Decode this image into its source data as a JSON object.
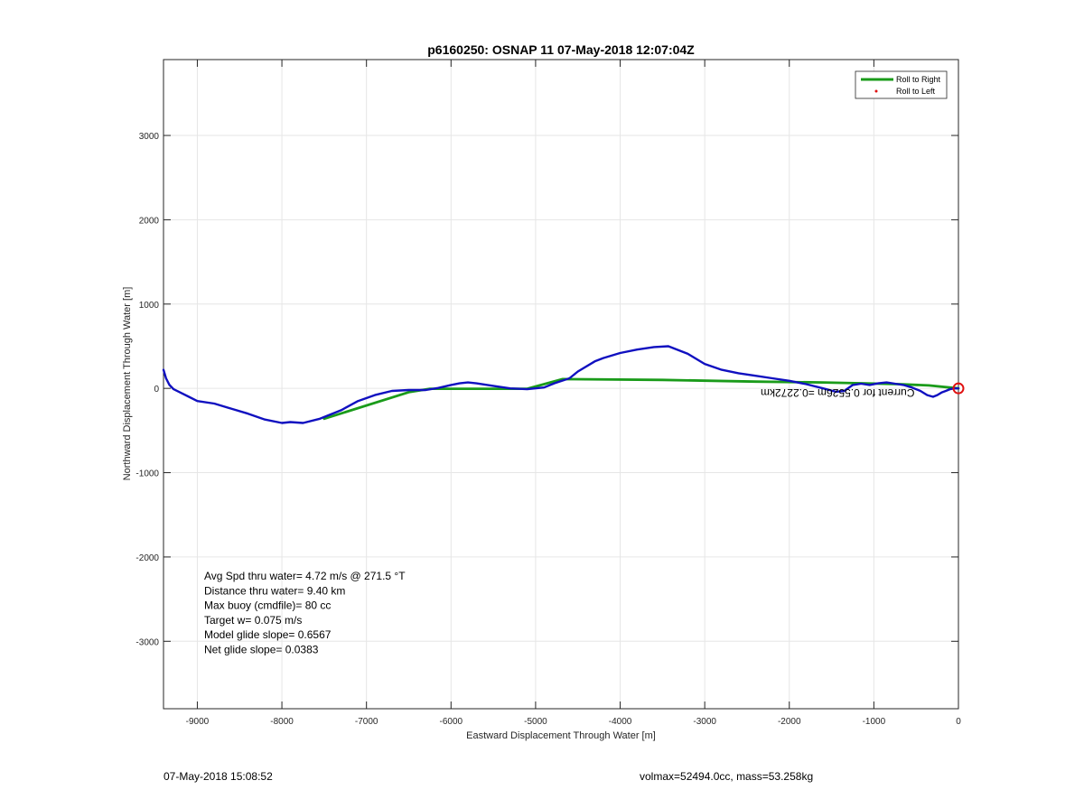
{
  "chart_data": {
    "type": "line",
    "title": "p6160250: OSNAP 11 07-May-2018 12:07:04Z",
    "xlabel": "Eastward Displacement Through Water [m]",
    "ylabel": "Northward Displacement Through Water [m]",
    "xlim": [
      -9400,
      0
    ],
    "ylim": [
      -3800,
      3900
    ],
    "xticks": [
      -9000,
      -8000,
      -7000,
      -6000,
      -5000,
      -4000,
      -3000,
      -2000,
      -1000,
      0
    ],
    "yticks": [
      -3000,
      -2000,
      -1000,
      0,
      1000,
      2000,
      3000
    ],
    "grid": true,
    "legend_placement": "top-right",
    "series": [
      {
        "name": "Roll to Right",
        "color": "#1a9b1a",
        "x": [
          -7500,
          -6500,
          -6250,
          -5100,
          -4680,
          -3500,
          -2400,
          -1600,
          -1100,
          -700,
          -350,
          0
        ],
        "y": [
          -360,
          -45,
          -5,
          -5,
          110,
          100,
          80,
          70,
          60,
          50,
          35,
          0
        ]
      },
      {
        "name": "Roll to Left",
        "color": "#e01010",
        "x": [],
        "y": []
      },
      {
        "name": "",
        "color": "#1010c0",
        "x": [
          -9400,
          -9370,
          -9330,
          -9280,
          -9200,
          -9100,
          -9000,
          -8800,
          -8600,
          -8400,
          -8200,
          -8000,
          -7900,
          -7750,
          -7550,
          -7300,
          -7100,
          -6900,
          -6700,
          -6500,
          -6300,
          -6150,
          -6000,
          -5900,
          -5800,
          -5700,
          -5500,
          -5300,
          -5100,
          -4900,
          -4780,
          -4600,
          -4500,
          -4300,
          -4200,
          -4000,
          -3800,
          -3600,
          -3430,
          -3200,
          -3000,
          -2800,
          -2600,
          -2400,
          -2200,
          -2000,
          -1800,
          -1600,
          -1450,
          -1350,
          -1250,
          -1150,
          -1050,
          -950,
          -850,
          -750,
          -650,
          -550,
          -450,
          -370,
          -300,
          -250,
          -200,
          -150,
          -100,
          -50,
          0
        ],
        "y": [
          220,
          120,
          40,
          -10,
          -50,
          -100,
          -150,
          -180,
          -240,
          -300,
          -370,
          -410,
          -400,
          -410,
          -360,
          -260,
          -150,
          -80,
          -30,
          -20,
          -20,
          5,
          40,
          60,
          70,
          60,
          30,
          0,
          -10,
          10,
          60,
          120,
          200,
          320,
          360,
          420,
          460,
          490,
          500,
          410,
          290,
          220,
          180,
          150,
          120,
          90,
          50,
          0,
          -40,
          -30,
          40,
          55,
          40,
          60,
          70,
          55,
          40,
          10,
          -30,
          -80,
          -100,
          -80,
          -50,
          -30,
          -10,
          0,
          0
        ]
      }
    ],
    "annotations": [
      {
        "text": "Avg Spd thru water=  4.72 m/s @ 271.5 °T"
      },
      {
        "text": "Distance thru water=  9.40 km"
      },
      {
        "text": "Max buoy (cmdfile)= 80 cc"
      },
      {
        "text": "Target w= 0.075 m/s"
      },
      {
        "text": "Model glide slope= 0.6567"
      },
      {
        "text": "Net glide slope= 0.0383"
      }
    ],
    "mirrored_label": "Current for 0.5526m =0.2272km",
    "end_marker": {
      "x": 0,
      "y": 0,
      "color": "#e01010"
    }
  },
  "footer": {
    "timestamp": "07-May-2018 15:08:52",
    "info": "volmax=52494.0cc, mass=53.258kg"
  }
}
